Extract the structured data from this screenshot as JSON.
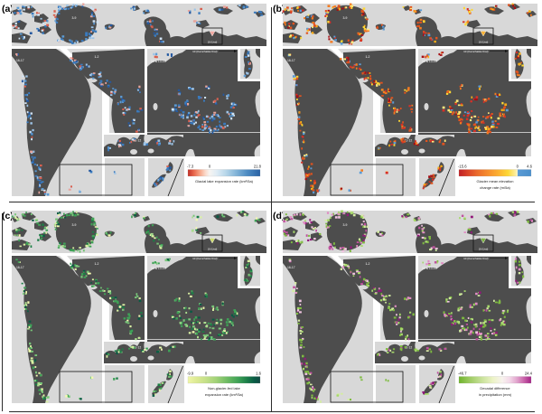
{
  "chart_data": [
    {
      "type": "map",
      "panel": "a",
      "colorbar_label": "Glacial lake expansion rate (km²/5a)",
      "colorbar_min": -7.3,
      "colorbar_zero": 0,
      "colorbar_max": 21.8,
      "colorbar_colors": [
        "red",
        "white",
        "blue"
      ],
      "region_labels": [
        "3-9",
        "18 (Ural)",
        "16-17",
        "1-2",
        "10 & 13-15",
        "10 (Kamchatka Krai)",
        "11-12"
      ]
    },
    {
      "type": "map",
      "panel": "b",
      "colorbar_label": "Glacier mean elevation change rate (m/5a)",
      "colorbar_min": -15.6,
      "colorbar_zero": 0,
      "colorbar_max": 4.6,
      "colorbar_colors": [
        "red",
        "orange",
        "yellow",
        "blue"
      ],
      "region_labels": [
        "3-9",
        "18 (Ural)",
        "16-17",
        "1-2",
        "10 & 13-15",
        "10 (Kamchatka Krai)",
        "11-12"
      ]
    },
    {
      "type": "map",
      "panel": "c",
      "colorbar_label": "Non-glacier-fed lake expansion rate (km²/5a)",
      "colorbar_min": -9.9,
      "colorbar_zero": 0,
      "colorbar_max": 1.6,
      "colorbar_colors": [
        "pale yellow",
        "green",
        "dark teal"
      ],
      "region_labels": [
        "3-9",
        "18 (Ural)",
        "16-17",
        "1-2",
        "10 & 13-15",
        "10 (Kamchatka Krai)",
        "11-12"
      ]
    },
    {
      "type": "map",
      "panel": "d",
      "colorbar_label": "Decadal difference in precipitation (mm)",
      "colorbar_min": -46.7,
      "colorbar_zero": 0,
      "colorbar_max": 24.4,
      "colorbar_colors": [
        "green",
        "pale yellow",
        "magenta"
      ],
      "region_labels": [
        "3-9",
        "18 (Ural)",
        "16-17",
        "1-2",
        "10 & 13-15",
        "10 (Kamchatka Krai)",
        "11-12"
      ]
    }
  ],
  "figure": {
    "background": "#ffffff",
    "ocean_color": "#d8d8d8",
    "land_color": "#4d4d4d",
    "region_labels": {
      "greenland": "3-9",
      "ural": "18 (Ural)",
      "south_america": "16-17",
      "alaska": "1-2",
      "asia": "10 & 13-15",
      "kamchatka": "10 (Kamchatka Krai)",
      "europe": "11-12"
    },
    "panels": [
      {
        "id": "(a)",
        "marker_color": "#f2a7a0",
        "palette": [
          "#3a7bbf",
          "#5b9bd5",
          "#9dc3e6",
          "#cfe2f3",
          "#2458a0",
          "#e8a49c",
          "#d9604f"
        ],
        "colorbar": {
          "min": "-7.3",
          "zero": "0",
          "max": "21.8",
          "zero_pos": 0.3,
          "caption1": "Glacial lake expansion rate (km²/5a)",
          "caption2": "",
          "stops": [
            [
              "#c03027",
              0
            ],
            [
              "#e8654a",
              0.08
            ],
            [
              "#f6a182",
              0.16
            ],
            [
              "#fbd9c9",
              0.24
            ],
            [
              "#f7f4f1",
              0.3
            ],
            [
              "#dfecf5",
              0.4
            ],
            [
              "#b9d8ea",
              0.52
            ],
            [
              "#85b6d9",
              0.66
            ],
            [
              "#4e8cc3",
              0.82
            ],
            [
              "#2a62a5",
              1
            ]
          ]
        }
      },
      {
        "id": "(b)",
        "marker_color": "#f9b233",
        "palette": [
          "#e1531f",
          "#d73027",
          "#f57c20",
          "#fbae17",
          "#fdd835",
          "#a50f15",
          "#ffe97f",
          "#5b9bd5"
        ],
        "colorbar": {
          "min": "-15.6",
          "zero": "0",
          "max": "4.6",
          "zero_pos": 0.81,
          "caption1": "Glacier mean elevation",
          "caption2": "change rate (m/5a)",
          "stops": [
            [
              "#bf2026",
              0
            ],
            [
              "#d94228",
              0.12
            ],
            [
              "#ea6a2c",
              0.25
            ],
            [
              "#f68d2e",
              0.4
            ],
            [
              "#fcb131",
              0.55
            ],
            [
              "#fdd835",
              0.68
            ],
            [
              "#fdefa5",
              0.79
            ],
            [
              "#fdf6cc",
              0.81
            ],
            [
              "#5b9bd5",
              0.815
            ],
            [
              "#4a8fcb",
              1
            ]
          ]
        }
      },
      {
        "id": "(c)",
        "marker_color": "#cddc6b",
        "palette": [
          "#3fa257",
          "#78c679",
          "#aadd8e",
          "#d9f0a3",
          "#f2f9b0",
          "#1b7e46",
          "#0a5c44"
        ],
        "colorbar": {
          "min": "-9.9",
          "zero": "0",
          "max": "1.6",
          "zero_pos": 0.25,
          "caption1": "Non-glacier-fed lake",
          "caption2": "expansion rate (km²/5a)",
          "stops": [
            [
              "#f0f6a8",
              0
            ],
            [
              "#dcea93",
              0.12
            ],
            [
              "#c4e089",
              0.25
            ],
            [
              "#9fd177",
              0.4
            ],
            [
              "#6cba62",
              0.55
            ],
            [
              "#3da156",
              0.7
            ],
            [
              "#1b7d48",
              0.82
            ],
            [
              "#0a5c45",
              0.92
            ],
            [
              "#124a43",
              1
            ]
          ]
        }
      },
      {
        "id": "(d)",
        "marker_color": "#7cb342",
        "palette": [
          "#7fbc41",
          "#a6d96a",
          "#d4eba3",
          "#e08cc3",
          "#c0529f",
          "#f0c4e0",
          "#92187a"
        ],
        "colorbar": {
          "min": "-46.7",
          "zero": "0",
          "max": "24.4",
          "zero_pos": 0.6,
          "caption1": "Decadal difference",
          "caption2": "in precipitation (mm)",
          "stops": [
            [
              "#6eb32b",
              0
            ],
            [
              "#9ecb62",
              0.15
            ],
            [
              "#c9e29b",
              0.32
            ],
            [
              "#ecf3c6",
              0.47
            ],
            [
              "#f8f3ee",
              0.6
            ],
            [
              "#f3d9e9",
              0.7
            ],
            [
              "#e2a6ce",
              0.8
            ],
            [
              "#c963aa",
              0.9
            ],
            [
              "#a32385",
              1
            ]
          ]
        }
      }
    ]
  }
}
